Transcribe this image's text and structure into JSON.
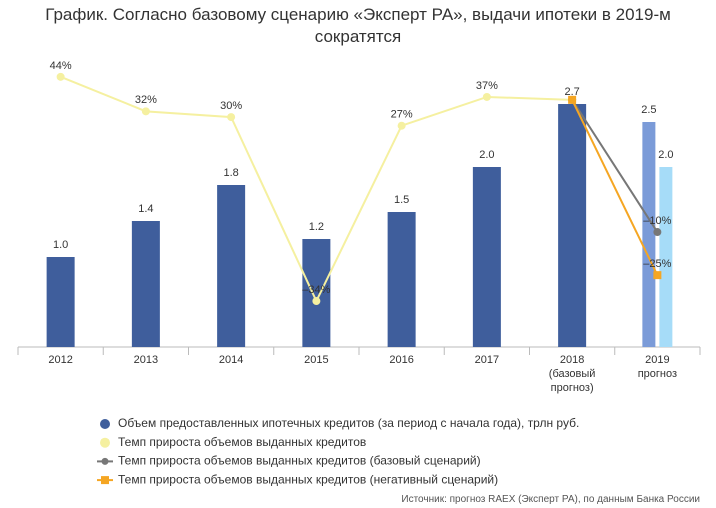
{
  "chart_data": {
    "type": "bar_line",
    "title": "График. Согласно базовому сценарию «Эксперт РА», выдачи ипотеки в 2019-м\nсократятся",
    "source": "Источник: прогноз RAEX (Эксперт РА), по данным Банка России",
    "categories": [
      "2012",
      "2013",
      "2014",
      "2015",
      "2016",
      "2017",
      "2018\n(базовый\nпрогноз)",
      "2019\nпрогноз"
    ],
    "ylim": [
      0,
      3.8
    ],
    "y2lim": [
      -50,
      69
    ],
    "series": [
      {
        "name": "Объем предоставленных ипотечных кредитов (за период с начала года), трлн руб.",
        "kind": "bar",
        "color": "#3f5e9c",
        "colors": [
          "#3f5e9c",
          "#3f5e9c",
          "#3f5e9c",
          "#3f5e9c",
          "#3f5e9c",
          "#3f5e9c",
          "#3f5e9c",
          "#7b9bd8"
        ],
        "values": [
          1.0,
          1.4,
          1.8,
          1.2,
          1.5,
          2.0,
          2.7,
          2.5
        ],
        "value_labels": [
          "1.0",
          "1.4",
          "1.8",
          "1.2",
          "1.5",
          "2.0",
          "2.7",
          "2.5"
        ]
      },
      {
        "kind": "bar",
        "color": "#a6dcf8",
        "values": [
          null,
          null,
          null,
          null,
          null,
          null,
          null,
          2.0
        ],
        "value_labels": [
          null,
          null,
          null,
          null,
          null,
          null,
          null,
          "2.0"
        ]
      },
      {
        "name": "Темп прироста объемов выданных кредитов",
        "kind": "line",
        "axis": "y2",
        "color": "#f5f0a0",
        "marker": "circle",
        "values": [
          44,
          32,
          30,
          -34,
          27,
          37,
          36,
          null
        ],
        "value_labels": [
          "44%",
          "32%",
          "30%",
          "–34%",
          "27%",
          "37%",
          null,
          null
        ]
      },
      {
        "name": "Темп прироста объемов выданных кредитов (базовый сценарий)",
        "kind": "line",
        "axis": "y2",
        "color": "#777777",
        "marker": "circle",
        "values": [
          null,
          null,
          null,
          null,
          null,
          null,
          36,
          -10
        ],
        "value_labels": [
          null,
          null,
          null,
          null,
          null,
          null,
          null,
          "–10%"
        ]
      },
      {
        "name": "Темп прироста объемов выданных кредитов (негативный сценарий)",
        "kind": "line",
        "axis": "y2",
        "color": "#f5a623",
        "marker": "square",
        "values": [
          null,
          null,
          null,
          null,
          null,
          null,
          36,
          -25
        ],
        "value_labels": [
          null,
          null,
          null,
          null,
          null,
          null,
          null,
          "–25%"
        ]
      }
    ]
  }
}
